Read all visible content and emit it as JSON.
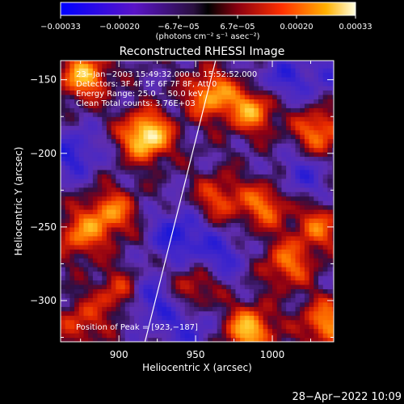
{
  "chart_data": {
    "type": "heatmap",
    "title": "Reconstructed RHESSI Image",
    "xlabel": "Heliocentric X (arcsec)",
    "ylabel": "Heliocentric Y (arcsec)",
    "xlim": [
      862,
      1040
    ],
    "ylim": [
      -328,
      -137
    ],
    "x_ticks": [
      900,
      950,
      1000
    ],
    "x_tick_labels": [
      "900",
      "950",
      "1000"
    ],
    "y_ticks": [
      -150,
      -200,
      -250,
      -300
    ],
    "y_tick_labels": [
      "−150",
      "−200",
      "−250",
      "−300"
    ],
    "colorbar": {
      "range": [
        -0.00033,
        0.00033
      ],
      "tick_labels": [
        "−0.00033",
        "−0.00020",
        "−6.7e−05",
        "6.7e−05",
        "0.00020",
        "0.00033"
      ],
      "units_text": "(photons cm⁻² s⁻¹ asec⁻²)"
    },
    "annotations": [
      "23−Jan−2003 15:49:32.000 to 15:52:52.000",
      "Detectors: 3F 4F 5F 6F 7F 8F, Att 0",
      "Energy Range: 25.0 − 50.0 keV",
      "Clean     Total counts: 3.76E+03"
    ],
    "peak_text": "Position of Peak = [923,−187]",
    "peak_position": [
      923,
      -187
    ],
    "limb_line": [
      [
        917,
        -328
      ],
      [
        963,
        -137
      ]
    ],
    "hot_regions": [
      {
        "x": 918,
        "y": -188,
        "intensity": 1.0
      },
      {
        "x": 877,
        "y": -147,
        "intensity": 0.75
      },
      {
        "x": 960,
        "y": -160,
        "intensity": 0.7
      },
      {
        "x": 895,
        "y": -240,
        "intensity": 0.6
      },
      {
        "x": 875,
        "y": -255,
        "intensity": 0.55
      },
      {
        "x": 987,
        "y": -170,
        "intensity": 0.7
      },
      {
        "x": 1030,
        "y": -185,
        "intensity": 0.6
      },
      {
        "x": 995,
        "y": -235,
        "intensity": 0.55
      },
      {
        "x": 965,
        "y": -230,
        "intensity": 0.45
      },
      {
        "x": 1010,
        "y": -275,
        "intensity": 0.55
      },
      {
        "x": 1030,
        "y": -250,
        "intensity": 0.5
      },
      {
        "x": 985,
        "y": -320,
        "intensity": 0.8
      },
      {
        "x": 1035,
        "y": -315,
        "intensity": 0.65
      },
      {
        "x": 900,
        "y": -295,
        "intensity": 0.45
      },
      {
        "x": 950,
        "y": -290,
        "intensity": 0.4
      },
      {
        "x": 875,
        "y": -315,
        "intensity": 0.4
      }
    ],
    "cold_regions": [
      {
        "x": 938,
        "y": -255,
        "depth": 0.9
      },
      {
        "x": 920,
        "y": -300,
        "depth": 0.8
      },
      {
        "x": 1005,
        "y": -150,
        "depth": 0.7
      },
      {
        "x": 965,
        "y": -270,
        "depth": 0.7
      },
      {
        "x": 870,
        "y": -200,
        "depth": 0.8
      },
      {
        "x": 1020,
        "y": -215,
        "depth": 0.6
      },
      {
        "x": 945,
        "y": -320,
        "depth": 0.6
      },
      {
        "x": 1035,
        "y": -145,
        "depth": 0.5
      }
    ]
  },
  "timestamp": "28−Apr−2022 10:09"
}
